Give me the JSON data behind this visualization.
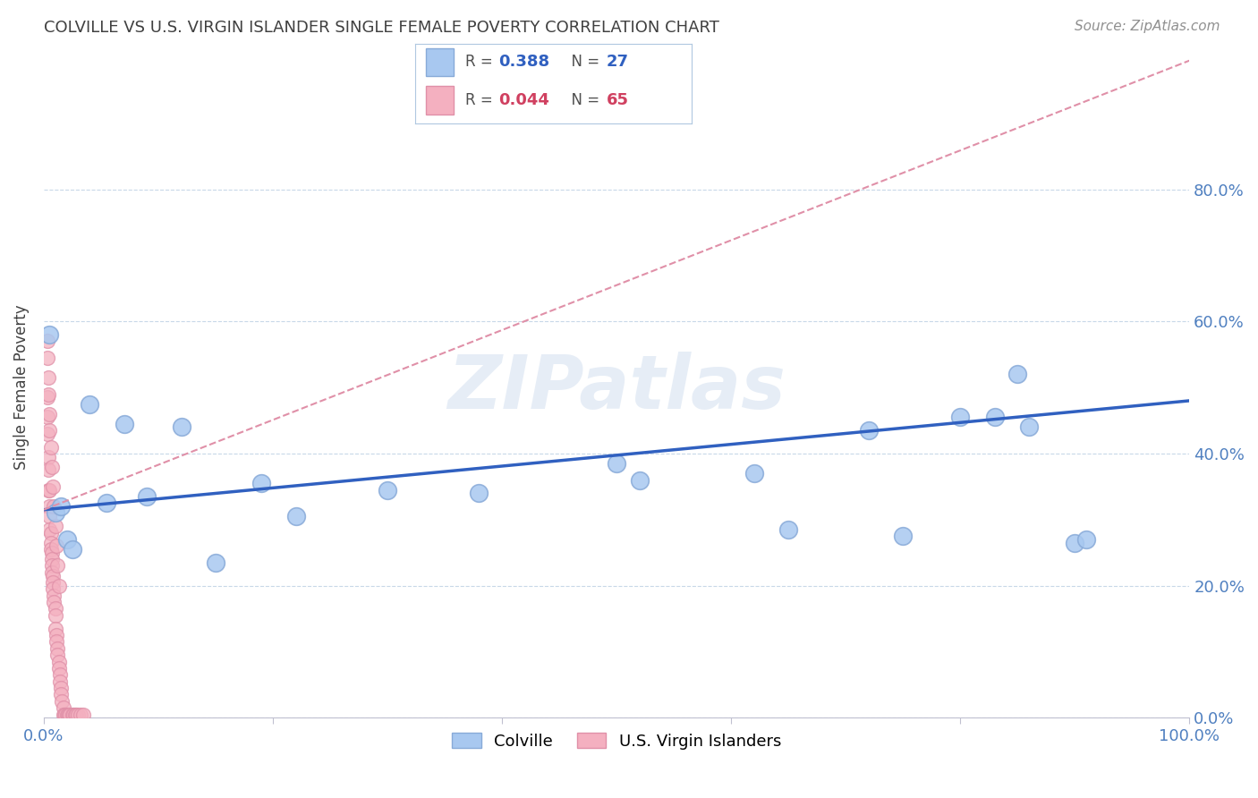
{
  "title": "COLVILLE VS U.S. VIRGIN ISLANDER SINGLE FEMALE POVERTY CORRELATION CHART",
  "source": "Source: ZipAtlas.com",
  "ylabel": "Single Female Poverty",
  "xlim": [
    0,
    1.0
  ],
  "ylim": [
    0,
    1.0
  ],
  "colville_color": "#a8c8f0",
  "virgin_color": "#f4b0c0",
  "colville_edge": "#88aad8",
  "virgin_edge": "#e090a8",
  "line_blue": "#3060c0",
  "line_pink": "#e090a8",
  "R_colville": 0.388,
  "N_colville": 27,
  "R_virgin": 0.044,
  "N_virgin": 65,
  "colville_x": [
    0.005,
    0.01,
    0.02,
    0.04,
    0.07,
    0.09,
    0.12,
    0.15,
    0.19,
    0.22,
    0.3,
    0.38,
    0.5,
    0.52,
    0.62,
    0.65,
    0.72,
    0.75,
    0.8,
    0.83,
    0.85,
    0.86,
    0.9,
    0.91,
    0.015,
    0.025,
    0.055
  ],
  "colville_y": [
    0.58,
    0.31,
    0.27,
    0.475,
    0.445,
    0.335,
    0.44,
    0.235,
    0.355,
    0.305,
    0.345,
    0.34,
    0.385,
    0.36,
    0.37,
    0.285,
    0.435,
    0.275,
    0.455,
    0.455,
    0.52,
    0.44,
    0.265,
    0.27,
    0.32,
    0.255,
    0.325
  ],
  "virgin_x": [
    0.003,
    0.003,
    0.003,
    0.004,
    0.004,
    0.004,
    0.005,
    0.005,
    0.005,
    0.005,
    0.006,
    0.006,
    0.006,
    0.007,
    0.007,
    0.007,
    0.007,
    0.008,
    0.008,
    0.008,
    0.009,
    0.009,
    0.01,
    0.01,
    0.01,
    0.011,
    0.011,
    0.012,
    0.012,
    0.013,
    0.013,
    0.014,
    0.014,
    0.015,
    0.015,
    0.016,
    0.017,
    0.017,
    0.018,
    0.019,
    0.02,
    0.021,
    0.022,
    0.023,
    0.025,
    0.026,
    0.027,
    0.028,
    0.03,
    0.032,
    0.034,
    0.003,
    0.003,
    0.004,
    0.004,
    0.005,
    0.005,
    0.006,
    0.007,
    0.008,
    0.009,
    0.01,
    0.011,
    0.012,
    0.013
  ],
  "virgin_y": [
    0.485,
    0.455,
    0.43,
    0.395,
    0.375,
    0.345,
    0.345,
    0.32,
    0.305,
    0.285,
    0.28,
    0.265,
    0.255,
    0.25,
    0.24,
    0.23,
    0.22,
    0.215,
    0.205,
    0.195,
    0.185,
    0.175,
    0.165,
    0.155,
    0.135,
    0.125,
    0.115,
    0.105,
    0.095,
    0.085,
    0.075,
    0.065,
    0.055,
    0.045,
    0.035,
    0.025,
    0.015,
    0.005,
    0.005,
    0.005,
    0.005,
    0.005,
    0.005,
    0.005,
    0.005,
    0.005,
    0.005,
    0.005,
    0.005,
    0.005,
    0.005,
    0.57,
    0.545,
    0.515,
    0.49,
    0.46,
    0.435,
    0.41,
    0.38,
    0.35,
    0.32,
    0.29,
    0.26,
    0.23,
    0.2
  ],
  "watermark": "ZIPatlas",
  "background_color": "#ffffff",
  "grid_color": "#c8d8e8",
  "title_color": "#404040",
  "right_tick_color": "#5080c0",
  "blue_line_intercept": 0.315,
  "blue_line_slope": 0.165,
  "pink_line_intercept": 0.315,
  "pink_line_slope": 0.68
}
